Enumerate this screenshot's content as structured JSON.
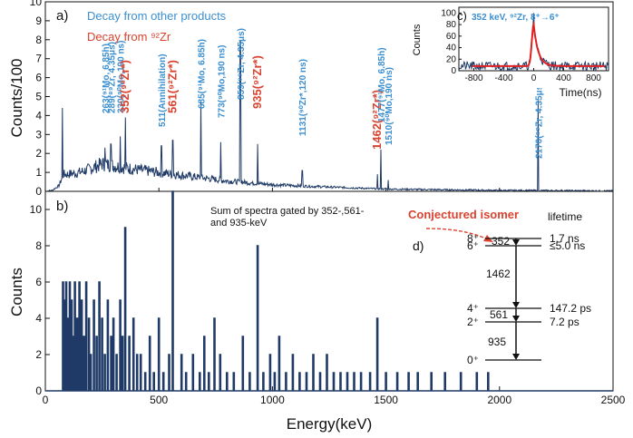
{
  "chart_data": [
    {
      "type": "line",
      "panel": "a)",
      "ylabel": "Counts/100",
      "xlim": [
        0,
        2500
      ],
      "ylim": [
        0,
        10
      ],
      "yticks": [
        "0",
        "1",
        "2",
        "3",
        "4",
        "5",
        "6",
        "7",
        "8",
        "9",
        "10"
      ],
      "legend": [
        {
          "label": "Decay from other products",
          "color": "#3b8fd0"
        },
        {
          "label": "Decay from ⁹²Zr",
          "color": "#d9432f"
        }
      ],
      "spectrum": {
        "color": "#1f3a66",
        "continuum": [
          [
            0,
            0.0
          ],
          [
            30,
            0.05
          ],
          [
            60,
            0.3
          ],
          [
            80,
            0.9
          ],
          [
            100,
            0.9
          ],
          [
            150,
            1.0
          ],
          [
            200,
            1.2
          ],
          [
            250,
            1.45
          ],
          [
            300,
            1.35
          ],
          [
            400,
            1.15
          ],
          [
            500,
            1.0
          ],
          [
            600,
            0.85
          ],
          [
            800,
            0.55
          ],
          [
            1000,
            0.35
          ],
          [
            1200,
            0.25
          ],
          [
            1500,
            0.12
          ],
          [
            1800,
            0.08
          ],
          [
            2000,
            0.05
          ],
          [
            2200,
            0.04
          ],
          [
            2500,
            0.02
          ]
        ],
        "peaks": [
          {
            "energy": 75,
            "counts": 4.4
          },
          {
            "energy": 263,
            "counts": 2.3
          },
          {
            "energy": 289,
            "counts": 2.5
          },
          {
            "energy": 330,
            "counts": 2.9
          },
          {
            "energy": 352,
            "counts": 3.9
          },
          {
            "energy": 511,
            "counts": 2.4
          },
          {
            "energy": 561,
            "counts": 2.7
          },
          {
            "energy": 685,
            "counts": 4.7
          },
          {
            "energy": 773,
            "counts": 2.6
          },
          {
            "energy": 859,
            "counts": 7.9
          },
          {
            "energy": 935,
            "counts": 2.5
          },
          {
            "energy": 1131,
            "counts": 1.1
          },
          {
            "energy": 1462,
            "counts": 0.9
          },
          {
            "energy": 1477,
            "counts": 2.2
          },
          {
            "energy": 1510,
            "counts": 0.6
          },
          {
            "energy": 2170,
            "counts": 4.8
          }
        ]
      },
      "peak_labels": [
        {
          "text": "263(⁹¹Mo, 6.85h)",
          "energy": 263,
          "color": "blue"
        },
        {
          "text": "289(⁸⁹Zr, 4.35μs)",
          "energy": 289,
          "color": "blue"
        },
        {
          "text": "330(⁹⁰Mo,190 ns)",
          "energy": 330,
          "color": "blue"
        },
        {
          "text": "352(⁹²Zr*)",
          "energy": 352,
          "color": "red"
        },
        {
          "text": "511(Annihilation)",
          "energy": 511,
          "color": "blue"
        },
        {
          "text": "561(⁹²Zr*)",
          "energy": 561,
          "color": "red"
        },
        {
          "text": "685(⁹¹Mo, 6.85h)",
          "energy": 685,
          "color": "blue"
        },
        {
          "text": "773(⁹⁰Mo,190 ns)",
          "energy": 773,
          "color": "blue"
        },
        {
          "text": "859(⁸⁹Zr, 4.35μs)",
          "energy": 859,
          "color": "blue"
        },
        {
          "text": "935(⁹²Zr*)",
          "energy": 935,
          "color": "red"
        },
        {
          "text": "1131(⁹⁰Zr*,120 ns)",
          "energy": 1131,
          "color": "blue"
        },
        {
          "text": "1462(⁹²Zr*)",
          "energy": 1462,
          "color": "red"
        },
        {
          "text": "1477(⁹¹Mo, 6.85h)",
          "energy": 1477,
          "color": "blue"
        },
        {
          "text": "1510(⁹⁰Mo,190 ns)",
          "energy": 1510,
          "color": "blue"
        },
        {
          "text": "2170(⁸⁹Zr, 4.35μs)",
          "energy": 2170,
          "color": "blue"
        }
      ]
    },
    {
      "type": "line",
      "panel": "c)",
      "title": "352 keV, ⁹²Zr, 8⁺→6⁺",
      "xlabel": "Time(ns)",
      "ylabel": "Counts",
      "xlim": [
        -1000,
        1000
      ],
      "ylim": [
        0,
        110
      ],
      "xticks": [
        "-800",
        "-400",
        "0",
        "400",
        "800"
      ],
      "yticks": [
        "0",
        "20",
        "40",
        "60",
        "80",
        "100"
      ],
      "data_color": "#1f3a66",
      "fit_color": "#e02020",
      "baseline": 10,
      "peak": {
        "time": 0,
        "counts": 100
      },
      "fit": {
        "baseline": 8,
        "amplitude": 72,
        "sigma": 25,
        "decay": 60
      }
    },
    {
      "type": "bar",
      "panel": "b)",
      "annotation": "Sum of spectra gated by 352-,561- and 935-keV",
      "xlabel": "Energy(keV)",
      "ylabel": "Counts",
      "xlim": [
        0,
        2500
      ],
      "ylim": [
        0,
        11
      ],
      "xticks": [
        "0",
        "500",
        "1000",
        "1500",
        "2000",
        "2500"
      ],
      "yticks": [
        "0",
        "2",
        "4",
        "6",
        "8",
        "10"
      ],
      "energies": [
        78,
        84,
        92,
        100,
        108,
        116,
        124,
        130,
        140,
        150,
        160,
        170,
        180,
        192,
        200,
        214,
        226,
        238,
        250,
        262,
        275,
        290,
        300,
        314,
        330,
        340,
        352,
        370,
        388,
        404,
        420,
        440,
        460,
        478,
        500,
        520,
        545,
        561,
        600,
        620,
        650,
        680,
        700,
        720,
        745,
        770,
        800,
        830,
        870,
        900,
        935,
        960,
        990,
        1010,
        1030,
        1060,
        1090,
        1120,
        1150,
        1180,
        1210,
        1240,
        1270,
        1300,
        1330,
        1360,
        1390,
        1430,
        1462,
        1500,
        1550,
        1600,
        1640,
        1700,
        1760,
        1830,
        1900,
        1950
      ],
      "counts": [
        6,
        5,
        6,
        4,
        6,
        5,
        3,
        6,
        4,
        6,
        5,
        3,
        6,
        4,
        2,
        5,
        3,
        6,
        4,
        2,
        5,
        3,
        4,
        2,
        5,
        3,
        9,
        3,
        4,
        2,
        2,
        1,
        3,
        1,
        4,
        1,
        2,
        11,
        2,
        1,
        2,
        1,
        3,
        1,
        4,
        2,
        1,
        1,
        3,
        1,
        8,
        1,
        2,
        1,
        3,
        1,
        2,
        1,
        1,
        2,
        1,
        2,
        1,
        1,
        1,
        1,
        1,
        1,
        4,
        1,
        1,
        1,
        1,
        1,
        1,
        1,
        1,
        1
      ]
    }
  ],
  "level_scheme": {
    "panel": "d)",
    "conjectured_label": "Conjectured isomer",
    "lifetime_header": "lifetime",
    "levels": [
      {
        "spin": "8⁺",
        "lifetime": "1.7 ns"
      },
      {
        "spin": "6⁺",
        "lifetime": "≤5.0 ns"
      },
      {
        "spin": "4⁺",
        "lifetime": "147.2 ps"
      },
      {
        "spin": "2⁺",
        "lifetime": "7.2 ps"
      },
      {
        "spin": "0⁺",
        "lifetime": ""
      }
    ],
    "transitions": [
      "352",
      "1462",
      "561",
      "935"
    ]
  }
}
